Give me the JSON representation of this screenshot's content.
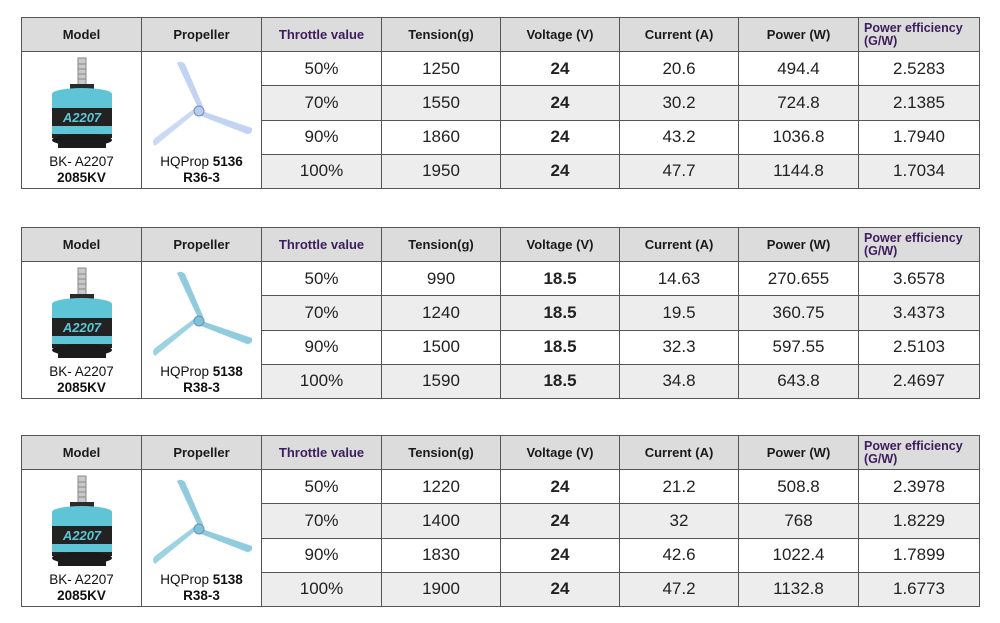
{
  "headers": {
    "model": "Model",
    "propeller": "Propeller",
    "throttle": "Throttle value",
    "tension": "Tension(g)",
    "voltage": "Voltage (V)",
    "current": "Current (A)",
    "power": "Power (W)",
    "efficiency_line1": "Power efficiency",
    "efficiency_line2": "(G/W)"
  },
  "motor_icon": "brushless-motor-image",
  "colors": {
    "header_bg": "#dcdcdc",
    "alt_row_bg": "#ededed",
    "header_purple": "#3d1d5c"
  },
  "tables": [
    {
      "motor": {
        "line1": "BK- A2207",
        "line2": "2085KV",
        "label_on_motor": "A2207"
      },
      "propeller": {
        "name": "HQProp",
        "size": "5136",
        "model": "R36-3",
        "color": "#b9cdf0"
      },
      "rows": [
        {
          "throttle": "50%",
          "tension": "1250",
          "voltage": "24",
          "current": "20.6",
          "power": "494.4",
          "efficiency": "2.5283"
        },
        {
          "throttle": "70%",
          "tension": "1550",
          "voltage": "24",
          "current": "30.2",
          "power": "724.8",
          "efficiency": "2.1385"
        },
        {
          "throttle": "90%",
          "tension": "1860",
          "voltage": "24",
          "current": "43.2",
          "power": "1036.8",
          "efficiency": "1.7940"
        },
        {
          "throttle": "100%",
          "tension": "1950",
          "voltage": "24",
          "current": "47.7",
          "power": "1144.8",
          "efficiency": "1.7034"
        }
      ]
    },
    {
      "motor": {
        "line1": "BK- A2207",
        "line2": "2085KV",
        "label_on_motor": "A2207"
      },
      "propeller": {
        "name": "HQProp",
        "size": "5138",
        "model": "R38-3",
        "color": "#7cc3d8"
      },
      "rows": [
        {
          "throttle": "50%",
          "tension": "990",
          "voltage": "18.5",
          "current": "14.63",
          "power": "270.655",
          "efficiency": "3.6578"
        },
        {
          "throttle": "70%",
          "tension": "1240",
          "voltage": "18.5",
          "current": "19.5",
          "power": "360.75",
          "efficiency": "3.4373"
        },
        {
          "throttle": "90%",
          "tension": "1500",
          "voltage": "18.5",
          "current": "32.3",
          "power": "597.55",
          "efficiency": "2.5103"
        },
        {
          "throttle": "100%",
          "tension": "1590",
          "voltage": "18.5",
          "current": "34.8",
          "power": "643.8",
          "efficiency": "2.4697"
        }
      ]
    },
    {
      "motor": {
        "line1": "BK- A2207",
        "line2": "2085KV",
        "label_on_motor": "A2207"
      },
      "propeller": {
        "name": "HQProp",
        "size": "5138",
        "model": "R38-3",
        "color": "#7cc3d8"
      },
      "rows": [
        {
          "throttle": "50%",
          "tension": "1220",
          "voltage": "24",
          "current": "21.2",
          "power": "508.8",
          "efficiency": "2.3978"
        },
        {
          "throttle": "70%",
          "tension": "1400",
          "voltage": "24",
          "current": "32",
          "power": "768",
          "efficiency": "1.8229"
        },
        {
          "throttle": "90%",
          "tension": "1830",
          "voltage": "24",
          "current": "42.6",
          "power": "1022.4",
          "efficiency": "1.7899"
        },
        {
          "throttle": "100%",
          "tension": "1900",
          "voltage": "24",
          "current": "47.2",
          "power": "1132.8",
          "efficiency": "1.6773"
        }
      ]
    }
  ]
}
